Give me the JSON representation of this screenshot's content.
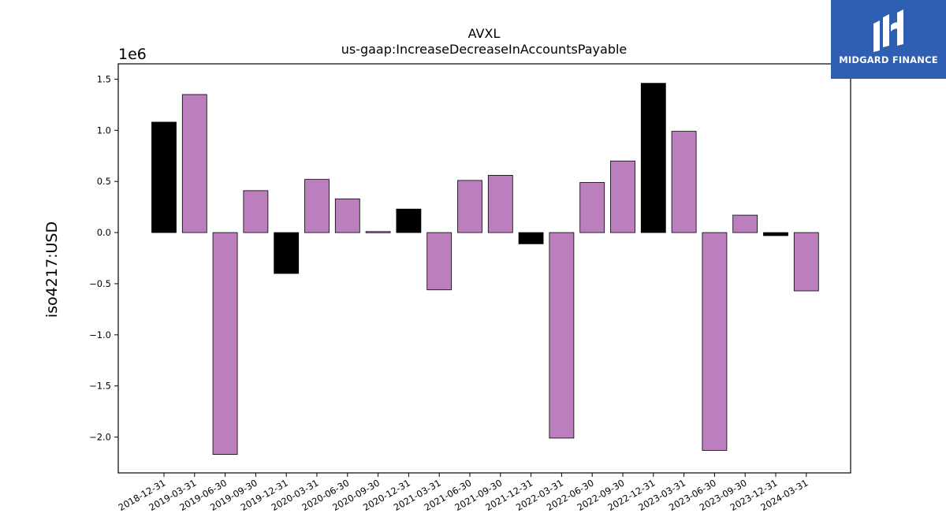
{
  "brand": {
    "name": "MIDGARD FINANCE",
    "logo_icon": "midgard-logo-icon",
    "background": "#2f5fb3"
  },
  "chart_data": {
    "type": "bar",
    "title": "AVXL",
    "subtitle": "us-gaap:IncreaseDecreaseInAccountsPayable",
    "ylabel": "iso4217:USD",
    "xlabel": "",
    "y_multiplier_label": "1e6",
    "ylim": [
      -2.35,
      1.65
    ],
    "yticks": [
      1.5,
      1.0,
      0.5,
      0.0,
      -0.5,
      -1.0,
      -1.5,
      -2.0
    ],
    "ytick_labels": [
      "1.5",
      "1.0",
      "0.5",
      "0.0",
      "−0.5",
      "−1.0",
      "−1.5",
      "−2.0"
    ],
    "grid": false,
    "colors": {
      "annual": "#000000",
      "quarterly": "#bc7fbd"
    },
    "categories": [
      "2018-12-31",
      "2019-03-31",
      "2019-06-30",
      "2019-09-30",
      "2019-12-31",
      "2020-03-31",
      "2020-06-30",
      "2020-09-30",
      "2020-12-31",
      "2021-03-31",
      "2021-06-30",
      "2021-09-30",
      "2021-12-31",
      "2022-03-31",
      "2022-06-30",
      "2022-09-30",
      "2022-12-31",
      "2023-03-31",
      "2023-06-30",
      "2023-09-30",
      "2023-12-31",
      "2024-03-31"
    ],
    "values": [
      1.08,
      1.35,
      -2.17,
      0.41,
      -0.4,
      0.52,
      0.33,
      0.01,
      0.23,
      -0.56,
      0.51,
      0.56,
      -0.11,
      -2.01,
      0.49,
      0.7,
      1.46,
      0.99,
      -2.13,
      0.17,
      -0.03,
      -0.57
    ],
    "bar_kind": [
      "annual",
      "quarterly",
      "quarterly",
      "quarterly",
      "annual",
      "quarterly",
      "quarterly",
      "quarterly",
      "annual",
      "quarterly",
      "quarterly",
      "quarterly",
      "annual",
      "quarterly",
      "quarterly",
      "quarterly",
      "annual",
      "quarterly",
      "quarterly",
      "quarterly",
      "annual",
      "quarterly"
    ]
  }
}
